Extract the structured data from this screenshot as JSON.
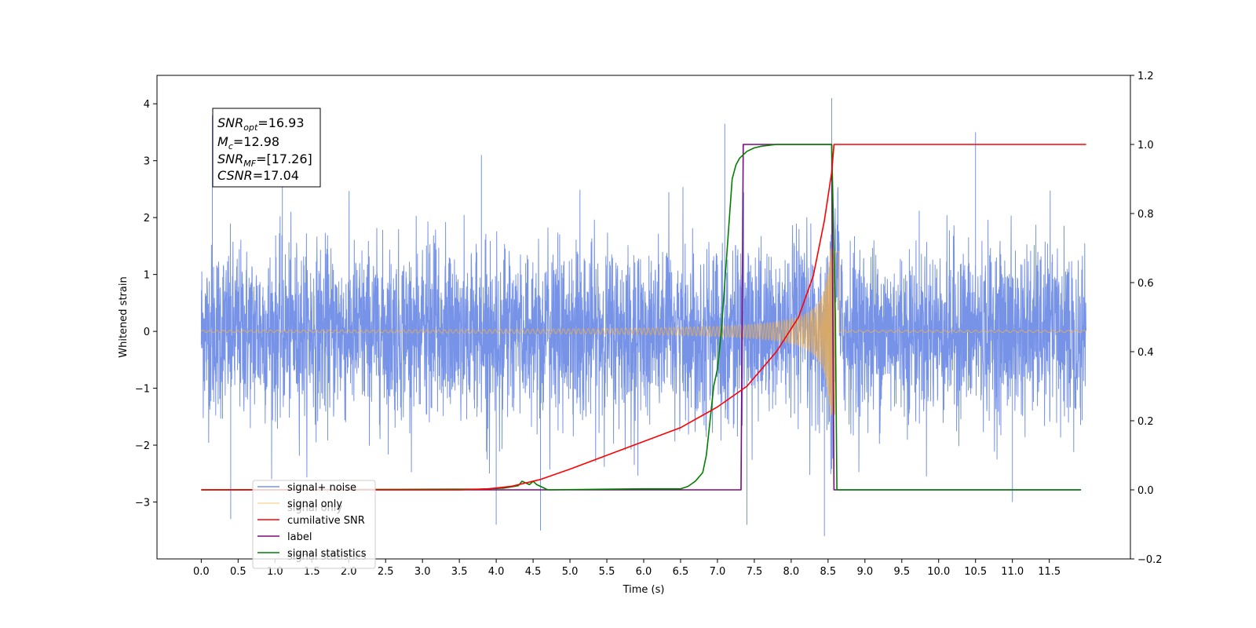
{
  "chart_data": {
    "type": "line",
    "xlabel": "Time (s)",
    "ylabel_left": "Whitened strain",
    "ylabel_right": "",
    "xlim": [
      -0.6,
      12.6
    ],
    "ylim_left": [
      -4.0,
      4.5
    ],
    "ylim_right": [
      -0.2,
      1.2
    ],
    "x_ticks": [
      "0.0",
      "0.5",
      "1.0",
      "1.5",
      "2.0",
      "2.5",
      "3.0",
      "3.5",
      "4.0",
      "4.5",
      "5.0",
      "5.5",
      "6.0",
      "6.5",
      "7.0",
      "7.5",
      "8.0",
      "8.5",
      "9.0",
      "9.5",
      "10.0",
      "10.5",
      "11.0",
      "11.5"
    ],
    "y_left_ticks": [
      "4",
      "3",
      "2",
      "1",
      "0",
      "−1",
      "−2",
      "−3"
    ],
    "y_right_ticks": [
      "1.2",
      "1.0",
      "0.8",
      "0.6",
      "0.4",
      "0.2",
      "0.0",
      "−0.2"
    ],
    "grid": false,
    "legend_position": "lower-left",
    "annotation": {
      "snr_opt": {
        "sym": "SNR",
        "sub": "opt",
        "value": "=16.93"
      },
      "mc": {
        "sym": "M",
        "sub": "c",
        "value": "=12.98"
      },
      "snr_mf": {
        "sym": "SNR",
        "sub": "MF",
        "value": "=[17.26]"
      },
      "csnr": {
        "sym": "CSNR",
        "sub": "",
        "value": "=17.04"
      }
    },
    "series": [
      {
        "name": "signal+ noise",
        "axis": "left",
        "color": "#7793e8",
        "x_range": [
          0.0,
          12.0
        ],
        "amplitude_envelope": {
          "noise_sigma": 0.75,
          "typical_max": 2.5,
          "spikes": [
            [
              0.15,
              3.8
            ],
            [
              0.4,
              -3.3
            ],
            [
              1.1,
              3.5
            ],
            [
              3.8,
              3.1
            ],
            [
              4.0,
              -3.4
            ],
            [
              4.6,
              -3.5
            ],
            [
              7.1,
              3.65
            ],
            [
              7.4,
              -3.4
            ],
            [
              8.45,
              -3.6
            ],
            [
              8.55,
              4.1
            ],
            [
              10.5,
              3.5
            ],
            [
              11.0,
              -3.0
            ]
          ]
        }
      },
      {
        "name": "signal only",
        "axis": "left",
        "color": "#f5b041",
        "x_range": [
          0.0,
          12.0
        ],
        "chirp": {
          "start": 0.0,
          "merger": 8.6,
          "amp_start": 0.02,
          "amp_merger": 1.5
        }
      },
      {
        "name": "cumilative SNR",
        "axis": "right",
        "color": "#ff0000",
        "x": [
          0.0,
          3.5,
          3.9,
          4.2,
          4.6,
          5.0,
          5.5,
          6.0,
          6.5,
          7.0,
          7.4,
          7.8,
          8.1,
          8.3,
          8.45,
          8.55,
          8.58,
          8.6,
          12.0
        ],
        "values": [
          0.0,
          0.0,
          0.003,
          0.01,
          0.03,
          0.06,
          0.1,
          0.14,
          0.18,
          0.24,
          0.3,
          0.4,
          0.5,
          0.62,
          0.78,
          0.92,
          1.0,
          1.0,
          1.0
        ]
      },
      {
        "name": "label",
        "axis": "right",
        "color": "#7b0a7b",
        "x": [
          0.0,
          7.32,
          7.35,
          8.55,
          8.58,
          11.93
        ],
        "values": [
          0.0,
          0.0,
          1.0,
          1.0,
          0.0,
          0.0
        ]
      },
      {
        "name": "signal statistics",
        "axis": "right",
        "color": "#008000",
        "x": [
          0.0,
          3.8,
          4.1,
          4.3,
          4.35,
          4.45,
          4.5,
          4.55,
          4.7,
          6.0,
          6.5,
          6.6,
          6.7,
          6.8,
          6.85,
          6.9,
          6.95,
          7.0,
          7.05,
          7.1,
          7.15,
          7.2,
          7.25,
          7.3,
          7.4,
          7.5,
          7.6,
          7.8,
          8.55,
          8.6,
          8.62,
          11.93
        ],
        "values": [
          0.0,
          0.002,
          0.005,
          0.012,
          0.025,
          0.015,
          0.025,
          0.015,
          0.0,
          0.003,
          0.003,
          0.01,
          0.025,
          0.05,
          0.1,
          0.2,
          0.3,
          0.35,
          0.45,
          0.6,
          0.75,
          0.9,
          0.94,
          0.96,
          0.98,
          0.99,
          0.995,
          1.0,
          1.0,
          0.5,
          0.0,
          0.0
        ]
      }
    ],
    "legend_entries": [
      "signal+ noise",
      "signal only",
      "cumilative SNR",
      "label",
      "signal statistics"
    ],
    "legend_ghost_text": [
      "signal only",
      "signal statistics"
    ]
  }
}
